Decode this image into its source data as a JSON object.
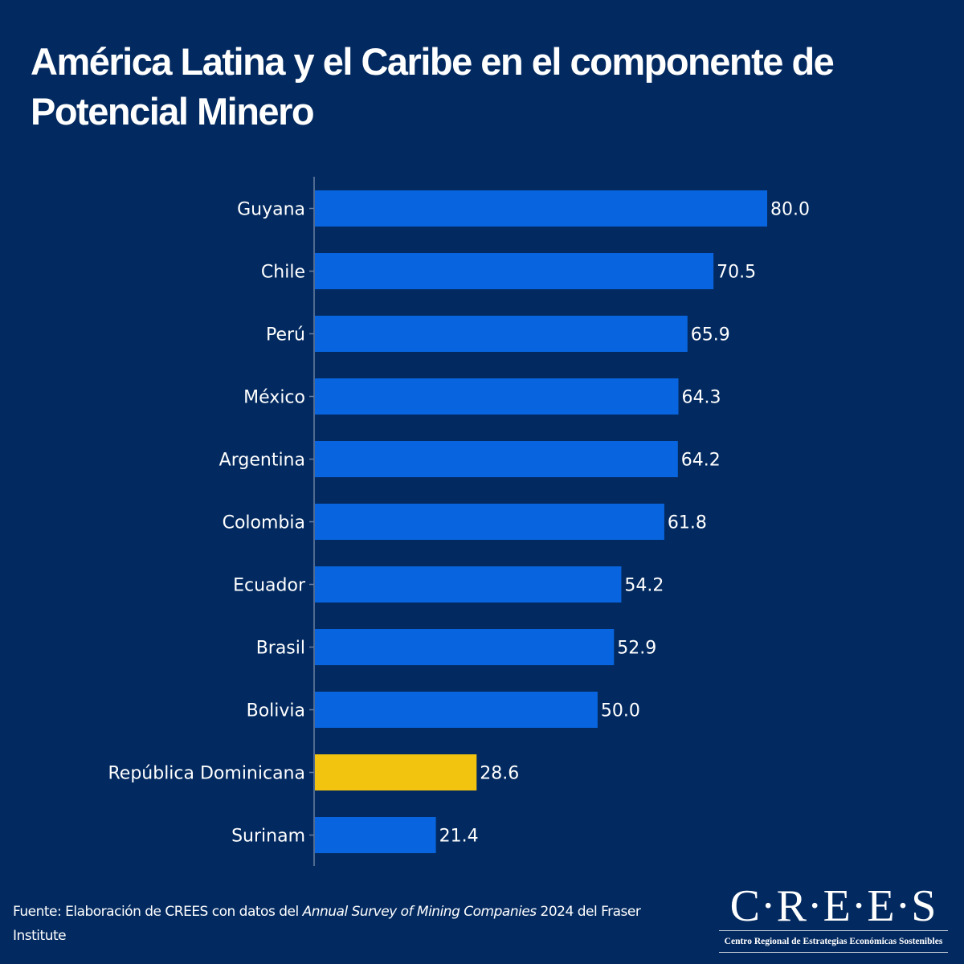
{
  "title": "América Latina y el Caribe en el componente de Potencial Minero",
  "footer": {
    "prefix": "Fuente: Elaboración de CREES con datos del ",
    "italic": "Annual Survey of Mining Companies",
    "suffix": " 2024 del Fraser Institute"
  },
  "logo": {
    "mark": "C·R·E·E·S",
    "subtitle": "Centro Regional de Estrategias Económicas Sostenibles"
  },
  "colors": {
    "background": "#032a60",
    "bar": "#0865df",
    "highlight": "#f2c40f",
    "text": "#ffffff",
    "axis": "#6b7fa0"
  },
  "chart_data": {
    "type": "bar",
    "orientation": "horizontal",
    "title": "América Latina y el Caribe en el componente de Potencial Minero",
    "xlabel": "",
    "ylabel": "",
    "xlim": [
      0,
      80
    ],
    "grid": false,
    "categories": [
      "Guyana",
      "Chile",
      "Perú",
      "México",
      "Argentina",
      "Colombia",
      "Ecuador",
      "Brasil",
      "Bolivia",
      "República Dominicana",
      "Surinam"
    ],
    "values": [
      80.0,
      70.5,
      65.9,
      64.3,
      64.2,
      61.8,
      54.2,
      52.9,
      50.0,
      28.6,
      21.4
    ],
    "labels": [
      "80.0",
      "70.5",
      "65.9",
      "64.3",
      "64.2",
      "61.8",
      "54.2",
      "52.9",
      "50.0",
      "28.6",
      "21.4"
    ],
    "highlight": "República Dominicana"
  }
}
